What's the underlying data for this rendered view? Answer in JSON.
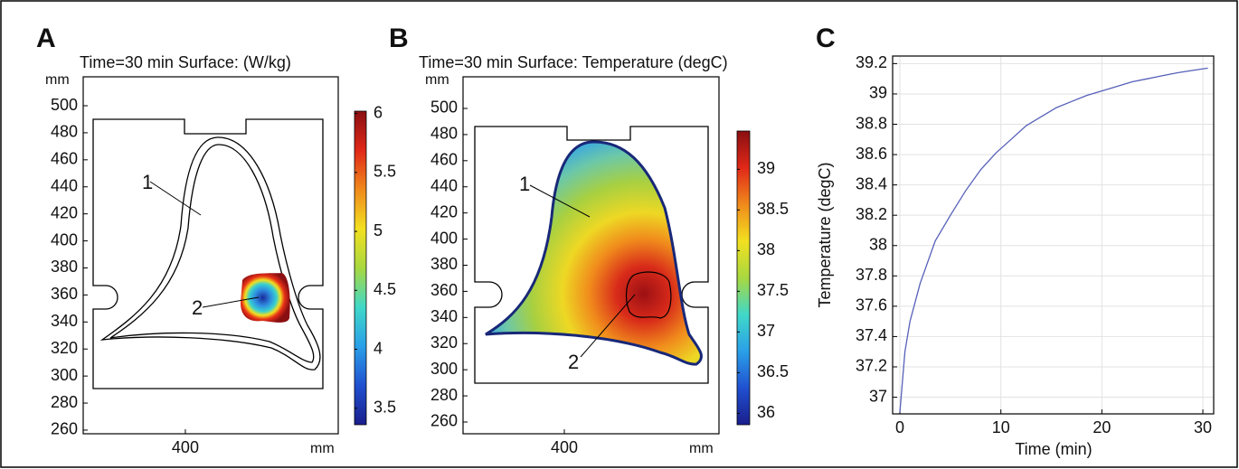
{
  "chart_data": [
    {
      "type": "surface",
      "panel": "A",
      "title": "Time=30 min Surface:  (W/kg)",
      "y_unit": "mm",
      "x_unit": "mm",
      "xlim": [
        324.5,
        513
      ],
      "ylim": [
        257.3,
        521.4
      ],
      "xticks": [
        400
      ],
      "yticks": [
        260,
        280,
        300,
        320,
        340,
        360,
        380,
        400,
        420,
        440,
        460,
        480,
        500
      ],
      "colorbar": {
        "colormap": "jet",
        "clim": [
          3.36,
          6.02
        ],
        "ticks": [
          3.5,
          4,
          4.5,
          5,
          5.5,
          6
        ]
      },
      "annotations": [
        "1",
        "2"
      ]
    },
    {
      "type": "surface",
      "panel": "B",
      "title": "Time=30 min Surface: Temperature (degC)",
      "y_unit": "mm",
      "x_unit": "mm",
      "xlim": [
        322.6,
        518.2
      ],
      "ylim": [
        251,
        524.2
      ],
      "xticks": [
        400
      ],
      "yticks": [
        260,
        280,
        300,
        320,
        340,
        360,
        380,
        400,
        420,
        440,
        460,
        480,
        500
      ],
      "colorbar": {
        "colormap": "jet",
        "clim": [
          35.86,
          39.47
        ],
        "ticks": [
          36,
          36.5,
          37,
          37.5,
          38,
          38.5,
          39
        ]
      },
      "annotations": [
        "1",
        "2"
      ]
    },
    {
      "type": "line",
      "panel": "C",
      "xlabel": "Time (min)",
      "ylabel": "Temperature (degC)",
      "x": [
        0,
        0.5,
        1,
        2,
        3.5,
        5,
        6.5,
        8,
        9.5,
        11,
        12.5,
        14,
        15.5,
        17,
        18.5,
        20,
        21.5,
        23,
        24.5,
        26,
        27.5,
        29,
        30.5
      ],
      "series": [
        {
          "color": "#5560b8",
          "values": [
            36.9,
            37.3,
            37.5,
            37.75,
            38.03,
            38.2,
            38.36,
            38.5,
            38.61,
            38.7,
            38.79,
            38.85,
            38.91,
            38.95,
            38.99,
            39.02,
            39.05,
            39.08,
            39.1,
            39.12,
            39.14,
            39.155,
            39.17
          ]
        }
      ],
      "xlim": [
        -0.72,
        31.07
      ],
      "ylim": [
        36.89,
        39.25
      ],
      "xticks": [
        0,
        10,
        20,
        30
      ],
      "yticks": [
        37,
        37.2,
        37.4,
        37.6,
        37.8,
        38,
        38.2,
        38.4,
        38.6,
        38.8,
        39,
        39.2
      ],
      "grid": true
    }
  ]
}
